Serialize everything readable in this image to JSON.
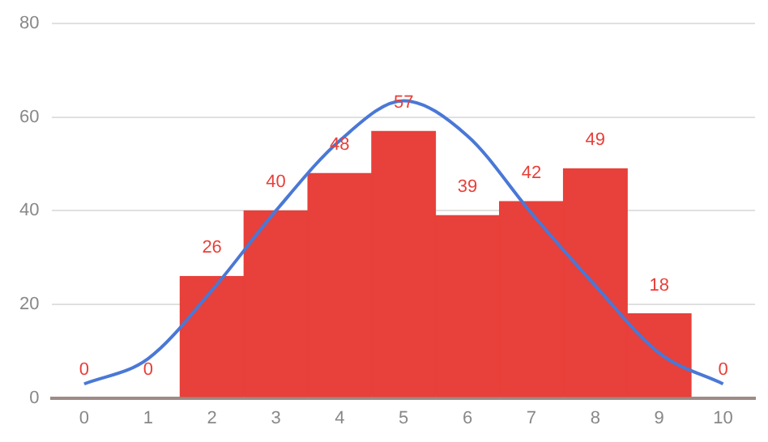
{
  "chart_data": {
    "type": "bar",
    "categories": [
      "0",
      "1",
      "2",
      "3",
      "4",
      "5",
      "6",
      "7",
      "8",
      "9",
      "10"
    ],
    "series": [
      {
        "color": "#e8403a",
        "values": [
          0,
          0,
          26,
          40,
          48,
          57,
          39,
          42,
          49,
          18,
          0
        ],
        "value_labels": [
          "0",
          "0",
          "26",
          "40",
          "48",
          "57",
          "39",
          "42",
          "49",
          "18",
          "0"
        ]
      },
      {
        "type": "line",
        "color": "#4a78d6",
        "values": [
          3,
          8.4,
          23,
          40,
          55,
          63.5,
          56,
          39.5,
          24,
          9.6,
          3
        ]
      }
    ],
    "ylim": [
      0,
      80
    ],
    "yticks": [
      0,
      20,
      40,
      60,
      80
    ],
    "grid": "y",
    "legend": false,
    "marker": "none"
  }
}
